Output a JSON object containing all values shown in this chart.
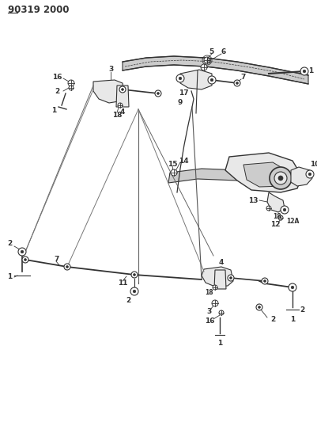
{
  "title": "90319 2000",
  "bg_color": "#ffffff",
  "line_color": "#333333",
  "fill_light": "#e8e8e8",
  "fill_mid": "#cccccc",
  "figsize": [
    4.01,
    5.33
  ],
  "dpi": 100,
  "title_fontsize": 8.5,
  "label_fontsize": 6.5
}
